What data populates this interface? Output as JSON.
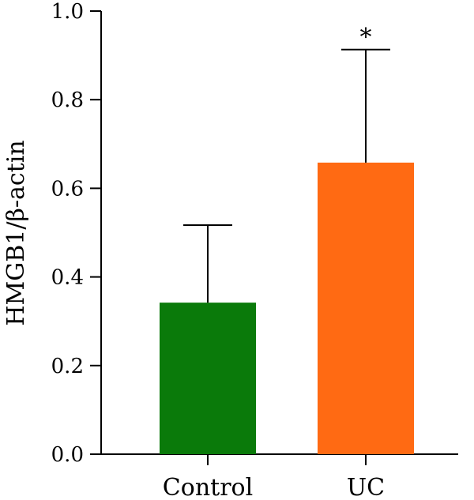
{
  "chart_data": {
    "type": "bar",
    "title": "",
    "xlabel": "",
    "ylabel": "HMGB1/β-actin",
    "categories": [
      "Control",
      "UC"
    ],
    "values": [
      0.342,
      0.658
    ],
    "error_upper": [
      0.517,
      0.913
    ],
    "significance": [
      "",
      "*"
    ],
    "colors": [
      "#0a7a0a",
      "#ff6a13"
    ],
    "ylim": [
      0.0,
      1.0
    ],
    "yticks": [
      "0.0",
      "0.2",
      "0.4",
      "0.6",
      "0.8",
      "1.0"
    ],
    "grid": false
  }
}
